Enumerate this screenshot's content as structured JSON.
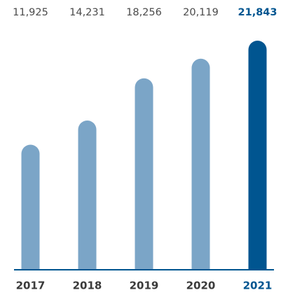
{
  "chart_data": {
    "type": "bar",
    "categories": [
      "2017",
      "2018",
      "2019",
      "2020",
      "2021"
    ],
    "values": [
      11925,
      14231,
      18256,
      20119,
      21843
    ],
    "value_labels": [
      "11,925",
      "14,231",
      "18,256",
      "20,119",
      "21,843"
    ],
    "color": "#7ba5c7",
    "highlight_color": "#005590",
    "colors": [
      "#7ba5c7",
      "#7ba5c7",
      "#7ba5c7",
      "#7ba5c7",
      "#005590"
    ],
    "axis_color": "#005590"
  }
}
